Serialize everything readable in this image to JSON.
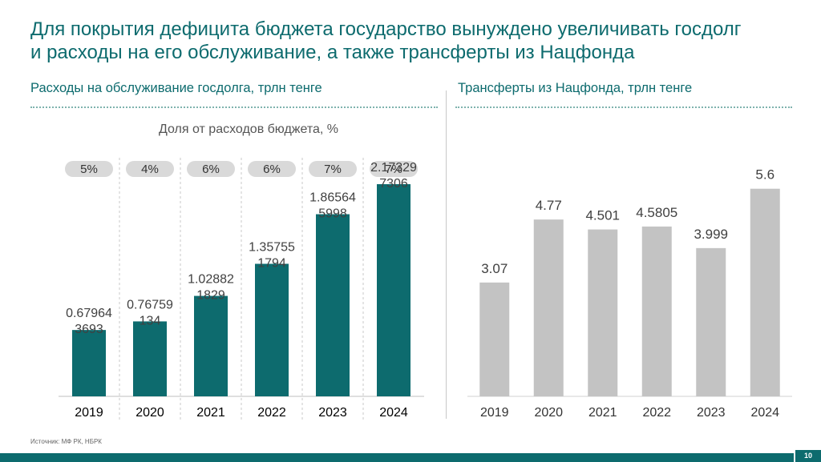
{
  "title": {
    "line1": "Для покрытия дефицита бюджета государство вынуждено увеличивать госдолг",
    "line2": "и расходы на его обслуживание, а также трансферты из Нацфонда"
  },
  "left_panel": {
    "title": "Расходы на обслуживание госдолга, трлн тенге",
    "subtitle": "Доля от расходов бюджета, %"
  },
  "right_panel": {
    "title": "Трансферты из Нацфонда, трлн тенге"
  },
  "source": "Источник: МФ РК, НБРК",
  "page_number": "10",
  "colors": {
    "teal": "#0d6b6e",
    "gray_bar": "#c3c3c3",
    "pill": "#d9d9d9"
  },
  "chart_data": [
    {
      "type": "bar",
      "title": "Расходы на обслуживание госдолга, трлн тенге",
      "categories": [
        "2019",
        "2020",
        "2021",
        "2022",
        "2023",
        "2024"
      ],
      "values": [
        0.679643693,
        0.76759134,
        1.028821829,
        1.357551794,
        1.865645998,
        2.173297306
      ],
      "value_labels": [
        [
          "0.67964",
          "3693"
        ],
        [
          "0.76759",
          "134"
        ],
        [
          "1.02882",
          "1829"
        ],
        [
          "1.35755",
          "1794"
        ],
        [
          "1.86564",
          "5998"
        ],
        [
          "2.17329",
          "7306"
        ]
      ],
      "share_label": "Доля от расходов бюджета, %",
      "share_of_budget": [
        "5%",
        "4%",
        "6%",
        "6%",
        "7%",
        "7%"
      ],
      "color": "#0d6b6e",
      "ylim": [
        0,
        2.6
      ]
    },
    {
      "type": "bar",
      "title": "Трансферты из Нацфонда, трлн тенге",
      "categories": [
        "2019",
        "2020",
        "2021",
        "2022",
        "2023",
        "2024"
      ],
      "values": [
        3.07,
        4.77,
        4.501,
        4.5805,
        3.999,
        5.6
      ],
      "value_labels": [
        "3.07",
        "4.77",
        "4.501",
        "4.5805",
        "3.999",
        "5.6"
      ],
      "color": "#c3c3c3",
      "ylim": [
        0,
        7.3
      ]
    }
  ]
}
